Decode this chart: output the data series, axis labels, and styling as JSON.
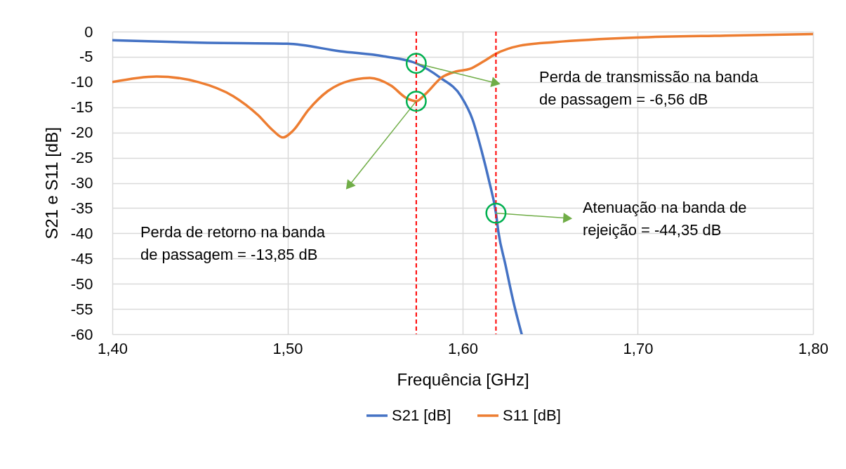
{
  "chart_data": {
    "type": "line",
    "xlabel": "Frequência [GHz]",
    "ylabel": "S21 e S11 [dB]",
    "xlim": [
      1.4,
      1.8
    ],
    "xticks": [
      {
        "value": 1.4,
        "label": "1,40"
      },
      {
        "value": 1.5,
        "label": "1,50"
      },
      {
        "value": 1.6,
        "label": "1,60"
      },
      {
        "value": 1.7,
        "label": "1,70"
      },
      {
        "value": 1.8,
        "label": "1,80"
      }
    ],
    "ylim": [
      -60,
      0
    ],
    "yticks": [
      0,
      -5,
      -10,
      -15,
      -20,
      -25,
      -30,
      -35,
      -40,
      -45,
      -50,
      -55,
      -60
    ],
    "grid": true,
    "legend": "bottom",
    "line_style": "solid",
    "marker": "none",
    "series": [
      {
        "name": "S21 [dB]",
        "color": "#4472c4",
        "x": [
          1.4,
          1.45,
          1.5,
          1.53,
          1.555,
          1.5735,
          1.587,
          1.599,
          1.6056,
          1.611,
          1.615,
          1.619,
          1.6204,
          1.6244,
          1.629,
          1.6337
        ],
        "values": [
          -1.7,
          -2.2,
          -2.4,
          -3.9,
          -4.9,
          -6.3,
          -9.1,
          -12.8,
          -17.4,
          -23.9,
          -29.5,
          -36,
          -39.7,
          -46.2,
          -53.6,
          -60
        ]
      },
      {
        "name": "S11 [dB]",
        "color": "#ed7d31",
        "x": [
          1.4,
          1.4253,
          1.449,
          1.469,
          1.483,
          1.492,
          1.4974,
          1.503,
          1.512,
          1.523,
          1.536,
          1.547,
          1.559,
          1.568,
          1.5735,
          1.579,
          1.588,
          1.5964,
          1.604,
          1.6124,
          1.619,
          1.6325,
          1.6525,
          1.699,
          1.75,
          1.8
        ],
        "values": [
          -10,
          -8.9,
          -10,
          -12.8,
          -16.5,
          -19.7,
          -21,
          -19.7,
          -15.5,
          -11.8,
          -9.7,
          -9.2,
          -10.7,
          -13.2,
          -13.8,
          -12.3,
          -9.1,
          -7.9,
          -7.4,
          -5.8,
          -4.4,
          -2.8,
          -2.1,
          -1.2,
          -0.8,
          -0.5
        ]
      }
    ],
    "ref_lines": [
      {
        "axis": "x",
        "value": 1.5735,
        "color": "#ff0000",
        "line_style": "dashed"
      },
      {
        "axis": "x",
        "value": 1.619,
        "color": "#ff0000",
        "line_style": "dashed"
      }
    ],
    "annotations": [
      "Perda de transmissão na banda\nde passagem = -6,56 dB",
      "Perda de retorno na banda\nde passagem = -13,85 dB",
      {
        "text": "Atenuação na banda de\nrejeição = -44,35 dB",
        "x": 1.619,
        "y": -36
      }
    ]
  }
}
